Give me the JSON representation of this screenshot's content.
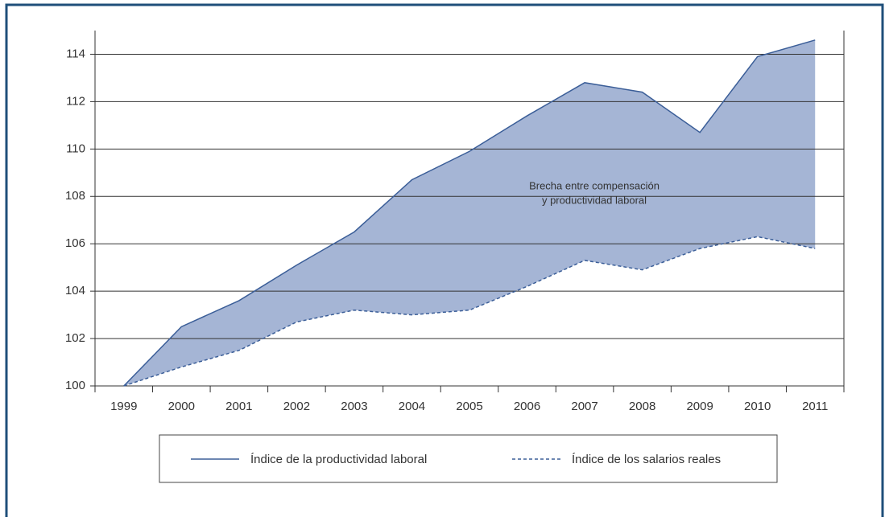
{
  "chart_data": {
    "type": "band",
    "categories": [
      "1999",
      "2000",
      "2001",
      "2002",
      "2003",
      "2004",
      "2005",
      "2006",
      "2007",
      "2008",
      "2009",
      "2010",
      "2011"
    ],
    "series": [
      {
        "name": "Índice de la productividad laboral",
        "color": "#3b5e98",
        "style": "solid",
        "values": [
          100,
          102.5,
          103.6,
          105.1,
          106.5,
          108.7,
          109.9,
          111.4,
          112.8,
          112.4,
          110.7,
          113.9,
          114.6
        ]
      },
      {
        "name": "Índice de los salarios reales",
        "color": "#3b5e98",
        "style": "dashed",
        "values": [
          100,
          100.8,
          101.5,
          102.7,
          103.2,
          103.0,
          103.2,
          104.2,
          105.3,
          104.9,
          105.8,
          106.3,
          105.8
        ]
      }
    ],
    "fill_color": "#a5b5d5",
    "annotation": [
      "Brecha entre compensación",
      "y productividad laboral"
    ],
    "ylim": [
      100,
      115
    ],
    "yticks": [
      100,
      102,
      104,
      106,
      108,
      110,
      112,
      114
    ],
    "grid": true
  }
}
